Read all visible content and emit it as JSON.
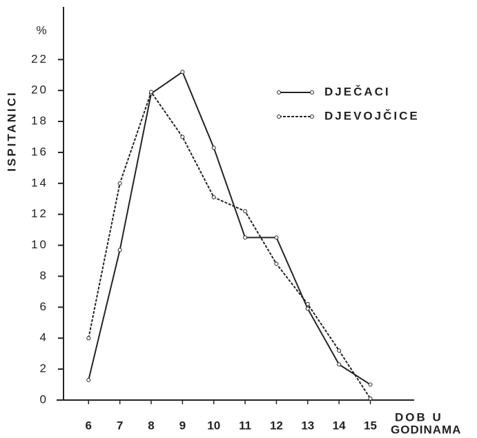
{
  "chart_data": {
    "type": "line",
    "y_label": "ISPITANICI",
    "y_unit": "%",
    "x_label_line1": "DOB U",
    "x_label_line2": "GODINAMA",
    "x": [
      6,
      7,
      8,
      9,
      10,
      11,
      12,
      13,
      14,
      15
    ],
    "series": [
      {
        "name": "DJEČACI",
        "color": "#222222",
        "dash": "solid",
        "values": [
          1.3,
          9.7,
          19.8,
          21.2,
          16.3,
          10.5,
          10.5,
          5.9,
          2.3,
          1.0
        ]
      },
      {
        "name": "DJEVOJČICE",
        "color": "#222222",
        "dash": "dotted",
        "values": [
          4.0,
          14.0,
          19.9,
          17.0,
          13.1,
          12.2,
          8.8,
          6.2,
          3.2,
          0.1
        ]
      }
    ],
    "xlim": [
      5.2,
      16.4
    ],
    "ylim": [
      0,
      25.4
    ],
    "xticks": [
      6,
      7,
      8,
      9,
      10,
      11,
      12,
      13,
      14,
      15
    ],
    "yticks": [
      0,
      2,
      4,
      6,
      8,
      10,
      12,
      14,
      16,
      18,
      20,
      22
    ],
    "grid": false,
    "legend": "upper right"
  }
}
